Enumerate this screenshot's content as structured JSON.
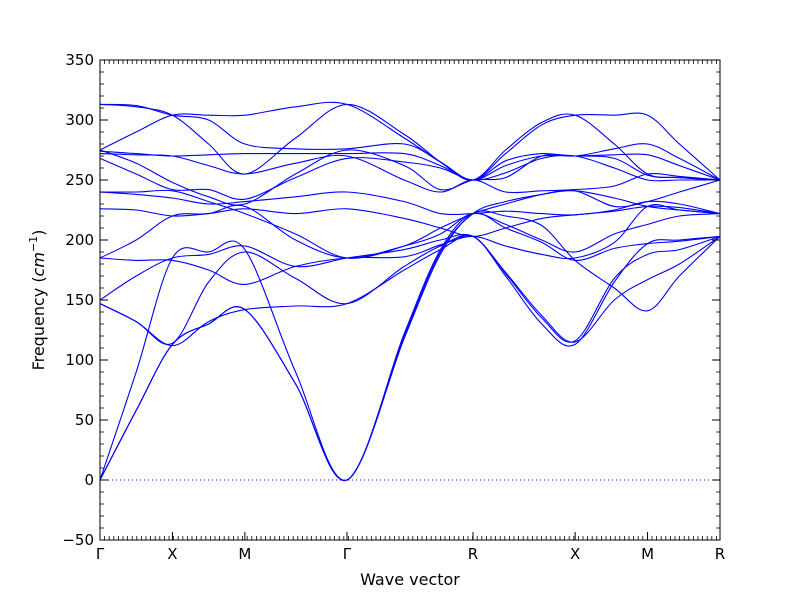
{
  "chart_data": {
    "type": "line",
    "xlabel": "Wave vector",
    "ylabel_text": "Frequency (",
    "ylabel_unit_base": "cm",
    "ylabel_unit_exp": "−1",
    "ylabel_close": ")",
    "ylim": [
      -50,
      350
    ],
    "yticks": [
      -50,
      0,
      50,
      100,
      150,
      200,
      250,
      300,
      350
    ],
    "xticks": [
      {
        "label": "Γ",
        "x": 0
      },
      {
        "label": "X",
        "x": 1
      },
      {
        "label": "M",
        "x": 2
      },
      {
        "label": "Γ",
        "x": 3.41
      },
      {
        "label": "R",
        "x": 5.15
      },
      {
        "label": "X",
        "x": 6.56
      },
      {
        "label": "M",
        "x": 7.56
      },
      {
        "label": "R",
        "x": 8.56
      }
    ],
    "xlim": [
      0,
      8.56
    ],
    "zero_line": {
      "y": 0,
      "style": "dotted"
    },
    "line_color": "#0000ff",
    "series": [
      {
        "values": [
          [
            0,
            0
          ],
          [
            0.5,
            58
          ],
          [
            1,
            113
          ],
          [
            1.5,
            130
          ],
          [
            2,
            142
          ],
          [
            2.7,
            80
          ],
          [
            3.41,
            0
          ],
          [
            4.2,
            120
          ],
          [
            4.7,
            190
          ],
          [
            5.15,
            222
          ],
          [
            5.6,
            232
          ],
          [
            6.1,
            238
          ],
          [
            6.56,
            241
          ],
          [
            7.1,
            235
          ],
          [
            7.56,
            228
          ],
          [
            8.0,
            225
          ],
          [
            8.56,
            222
          ]
        ]
      },
      {
        "values": [
          [
            0,
            0
          ],
          [
            0.5,
            58
          ],
          [
            1,
            113
          ],
          [
            1.5,
            130
          ],
          [
            2,
            142
          ],
          [
            2.7,
            80
          ],
          [
            3.41,
            0
          ],
          [
            4.2,
            118
          ],
          [
            4.7,
            188
          ],
          [
            5.15,
            222
          ],
          [
            5.6,
            220
          ],
          [
            6.1,
            212
          ],
          [
            6.56,
            183
          ],
          [
            7.1,
            160
          ],
          [
            7.56,
            141
          ],
          [
            8.0,
            170
          ],
          [
            8.56,
            203
          ]
        ]
      },
      {
        "values": [
          [
            0,
            0
          ],
          [
            0.5,
            90
          ],
          [
            1,
            185
          ],
          [
            1.5,
            190
          ],
          [
            2,
            192
          ],
          [
            2.7,
            90
          ],
          [
            3.41,
            0
          ],
          [
            4.2,
            122
          ],
          [
            4.7,
            192
          ],
          [
            5.15,
            222
          ],
          [
            5.6,
            210
          ],
          [
            6.1,
            198
          ],
          [
            6.56,
            183
          ],
          [
            7.1,
            193
          ],
          [
            7.56,
            197
          ],
          [
            8.0,
            199
          ],
          [
            8.56,
            203
          ]
        ]
      },
      {
        "values": [
          [
            0,
            147
          ],
          [
            0.5,
            132
          ],
          [
            1,
            112
          ],
          [
            1.5,
            132
          ],
          [
            2,
            142
          ],
          [
            2.7,
            145
          ],
          [
            3.41,
            147
          ],
          [
            4.2,
            175
          ],
          [
            4.7,
            192
          ],
          [
            5.15,
            203
          ],
          [
            5.6,
            170
          ],
          [
            6.1,
            130
          ],
          [
            6.56,
            113
          ],
          [
            7.1,
            165
          ],
          [
            7.56,
            197
          ],
          [
            8.0,
            200
          ],
          [
            8.56,
            203
          ]
        ]
      },
      {
        "values": [
          [
            0,
            147
          ],
          [
            0.5,
            132
          ],
          [
            1,
            114
          ],
          [
            1.5,
            165
          ],
          [
            2,
            190
          ],
          [
            2.7,
            168
          ],
          [
            3.41,
            147
          ],
          [
            4.2,
            178
          ],
          [
            4.7,
            195
          ],
          [
            5.15,
            203
          ],
          [
            5.6,
            172
          ],
          [
            6.1,
            135
          ],
          [
            6.56,
            116
          ],
          [
            7.1,
            168
          ],
          [
            7.56,
            188
          ],
          [
            8.0,
            192
          ],
          [
            8.56,
            203
          ]
        ]
      },
      {
        "values": [
          [
            0,
            150
          ],
          [
            0.5,
            170
          ],
          [
            1,
            185
          ],
          [
            1.5,
            188
          ],
          [
            2,
            195
          ],
          [
            2.7,
            178
          ],
          [
            3.41,
            185
          ],
          [
            4.2,
            192
          ],
          [
            4.7,
            200
          ],
          [
            5.15,
            203
          ],
          [
            5.6,
            173
          ],
          [
            6.1,
            137
          ],
          [
            6.56,
            115
          ],
          [
            7.1,
            150
          ],
          [
            7.56,
            167
          ],
          [
            8.0,
            180
          ],
          [
            8.56,
            203
          ]
        ]
      },
      {
        "values": [
          [
            0,
            185
          ],
          [
            0.5,
            183
          ],
          [
            1,
            183
          ],
          [
            1.5,
            175
          ],
          [
            2,
            163
          ],
          [
            2.7,
            178
          ],
          [
            3.41,
            185
          ],
          [
            4.2,
            186
          ],
          [
            4.7,
            196
          ],
          [
            5.15,
            203
          ],
          [
            5.6,
            195
          ],
          [
            6.1,
            188
          ],
          [
            6.56,
            185
          ],
          [
            7.1,
            198
          ],
          [
            7.56,
            228
          ],
          [
            8.0,
            225
          ],
          [
            8.56,
            222
          ]
        ]
      },
      {
        "values": [
          [
            0,
            185
          ],
          [
            0.5,
            200
          ],
          [
            1,
            220
          ],
          [
            1.5,
            222
          ],
          [
            2,
            228
          ],
          [
            2.7,
            200
          ],
          [
            3.41,
            185
          ],
          [
            4.2,
            195
          ],
          [
            4.7,
            205
          ],
          [
            5.15,
            222
          ],
          [
            5.6,
            213
          ],
          [
            6.1,
            200
          ],
          [
            6.56,
            190
          ],
          [
            7.1,
            205
          ],
          [
            7.56,
            213
          ],
          [
            8.0,
            220
          ],
          [
            8.56,
            222
          ]
        ]
      },
      {
        "values": [
          [
            0,
            226
          ],
          [
            0.5,
            225
          ],
          [
            1,
            220
          ],
          [
            1.5,
            222
          ],
          [
            2,
            226
          ],
          [
            2.7,
            222
          ],
          [
            3.41,
            226
          ],
          [
            4.2,
            218
          ],
          [
            4.7,
            210
          ],
          [
            5.15,
            203
          ],
          [
            5.6,
            210
          ],
          [
            6.1,
            218
          ],
          [
            6.56,
            221
          ],
          [
            7.1,
            224
          ],
          [
            7.56,
            228
          ],
          [
            8.0,
            227
          ],
          [
            8.56,
            222
          ]
        ]
      },
      {
        "values": [
          [
            0,
            240
          ],
          [
            0.5,
            238
          ],
          [
            1,
            235
          ],
          [
            1.5,
            230
          ],
          [
            2,
            232
          ],
          [
            2.7,
            236
          ],
          [
            3.41,
            240
          ],
          [
            4.2,
            232
          ],
          [
            4.7,
            222
          ],
          [
            5.15,
            222
          ],
          [
            5.6,
            224
          ],
          [
            6.1,
            222
          ],
          [
            6.56,
            221
          ],
          [
            7.1,
            225
          ],
          [
            7.56,
            232
          ],
          [
            8.0,
            230
          ],
          [
            8.56,
            222
          ]
        ]
      },
      {
        "values": [
          [
            0,
            240
          ],
          [
            0.5,
            240
          ],
          [
            1,
            241
          ],
          [
            1.5,
            232
          ],
          [
            2,
            222
          ],
          [
            2.7,
            205
          ],
          [
            3.41,
            185
          ],
          [
            4.2,
            195
          ],
          [
            4.7,
            210
          ],
          [
            5.15,
            222
          ],
          [
            5.6,
            230
          ],
          [
            6.1,
            238
          ],
          [
            6.56,
            241
          ],
          [
            7.1,
            228
          ],
          [
            7.56,
            232
          ],
          [
            8.0,
            240
          ],
          [
            8.56,
            250
          ]
        ]
      },
      {
        "values": [
          [
            0,
            268
          ],
          [
            0.5,
            255
          ],
          [
            1,
            242
          ],
          [
            1.5,
            242
          ],
          [
            2,
            234
          ],
          [
            2.7,
            252
          ],
          [
            3.41,
            268
          ],
          [
            4.2,
            265
          ],
          [
            4.7,
            260
          ],
          [
            5.15,
            250
          ],
          [
            5.6,
            256
          ],
          [
            6.1,
            268
          ],
          [
            6.56,
            270
          ],
          [
            7.1,
            260
          ],
          [
            7.56,
            250
          ],
          [
            8.0,
            250
          ],
          [
            8.56,
            250
          ]
        ]
      },
      {
        "values": [
          [
            0,
            272
          ],
          [
            0.5,
            271
          ],
          [
            1,
            270
          ],
          [
            1.5,
            262
          ],
          [
            2,
            255
          ],
          [
            2.7,
            264
          ],
          [
            3.41,
            270
          ],
          [
            4.2,
            250
          ],
          [
            4.7,
            240
          ],
          [
            5.15,
            250
          ],
          [
            5.6,
            240
          ],
          [
            6.1,
            241
          ],
          [
            6.56,
            242
          ],
          [
            7.1,
            245
          ],
          [
            7.56,
            255
          ],
          [
            8.0,
            253
          ],
          [
            8.56,
            250
          ]
        ]
      },
      {
        "values": [
          [
            0,
            274
          ],
          [
            0.5,
            272
          ],
          [
            1,
            270
          ],
          [
            1.5,
            271
          ],
          [
            2,
            272
          ],
          [
            2.7,
            272
          ],
          [
            3.41,
            272
          ],
          [
            4.2,
            272
          ],
          [
            4.7,
            262
          ],
          [
            5.15,
            250
          ],
          [
            5.6,
            262
          ],
          [
            6.1,
            270
          ],
          [
            6.56,
            270
          ],
          [
            7.1,
            271
          ],
          [
            7.56,
            271
          ],
          [
            8.0,
            262
          ],
          [
            8.56,
            250
          ]
        ]
      },
      {
        "values": [
          [
            0,
            275
          ],
          [
            0.5,
            290
          ],
          [
            1,
            304
          ],
          [
            1.5,
            304
          ],
          [
            2,
            304
          ],
          [
            2.7,
            311
          ],
          [
            3.41,
            313
          ],
          [
            4.2,
            285
          ],
          [
            4.7,
            265
          ],
          [
            5.15,
            250
          ],
          [
            5.6,
            272
          ],
          [
            6.1,
            296
          ],
          [
            6.56,
            304
          ],
          [
            7.1,
            304
          ],
          [
            7.56,
            304
          ],
          [
            8.0,
            280
          ],
          [
            8.56,
            250
          ]
        ]
      },
      {
        "values": [
          [
            0,
            313
          ],
          [
            0.5,
            311
          ],
          [
            1,
            304
          ],
          [
            1.5,
            280
          ],
          [
            2,
            255
          ],
          [
            2.7,
            285
          ],
          [
            3.41,
            313
          ],
          [
            4.2,
            288
          ],
          [
            4.7,
            265
          ],
          [
            5.15,
            250
          ],
          [
            5.6,
            275
          ],
          [
            6.1,
            298
          ],
          [
            6.56,
            304
          ],
          [
            7.1,
            280
          ],
          [
            7.56,
            255
          ],
          [
            8.0,
            252
          ],
          [
            8.56,
            250
          ]
        ]
      },
      {
        "values": [
          [
            0,
            313
          ],
          [
            0.5,
            312
          ],
          [
            1,
            304
          ],
          [
            1.5,
            300
          ],
          [
            2,
            280
          ],
          [
            2.7,
            276
          ],
          [
            3.41,
            276
          ],
          [
            4.2,
            280
          ],
          [
            4.7,
            265
          ],
          [
            5.15,
            250
          ],
          [
            5.6,
            266
          ],
          [
            6.1,
            272
          ],
          [
            6.56,
            270
          ],
          [
            7.1,
            276
          ],
          [
            7.56,
            280
          ],
          [
            8.0,
            268
          ],
          [
            8.56,
            250
          ]
        ]
      },
      {
        "values": [
          [
            0,
            275
          ],
          [
            0.5,
            264
          ],
          [
            1,
            248
          ],
          [
            1.5,
            236
          ],
          [
            2,
            230
          ],
          [
            2.7,
            255
          ],
          [
            3.41,
            275
          ],
          [
            4.2,
            262
          ],
          [
            4.7,
            242
          ],
          [
            5.15,
            250
          ],
          [
            5.6,
            252
          ],
          [
            6.1,
            270
          ],
          [
            6.56,
            270
          ],
          [
            7.1,
            268
          ],
          [
            7.56,
            254
          ],
          [
            8.0,
            252
          ],
          [
            8.56,
            250
          ]
        ]
      }
    ]
  }
}
